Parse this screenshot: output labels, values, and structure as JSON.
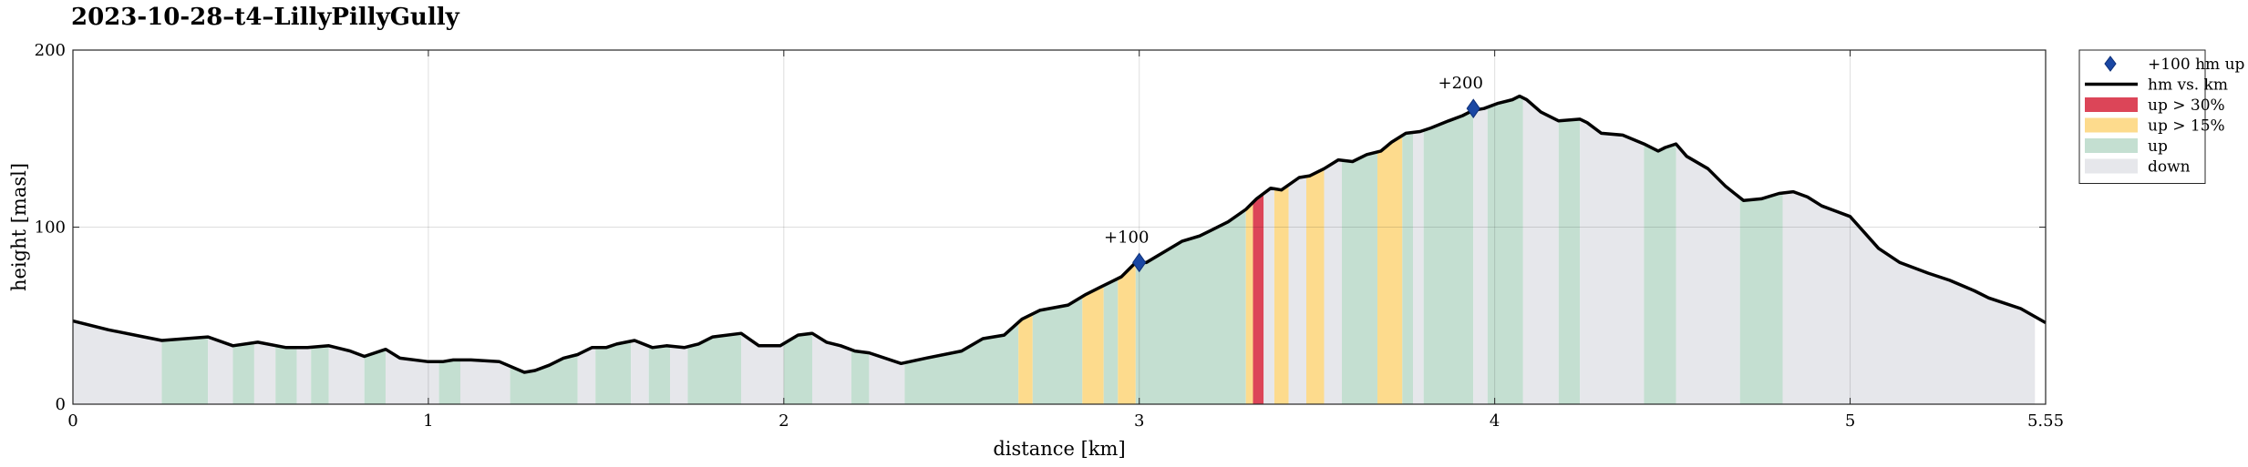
{
  "title": "2023-10-28–t4–LillyPillyGully",
  "chart_data": {
    "type": "area",
    "title": "2023-10-28–t4–LillyPillyGully",
    "xlabel": "distance [km]",
    "ylabel": "height [masl]",
    "xlim": [
      0,
      5.55
    ],
    "ylim": [
      0,
      200
    ],
    "xticks": [
      0,
      1,
      2,
      3,
      4,
      5,
      5.55
    ],
    "xtick_labels": [
      "0",
      "1",
      "2",
      "3",
      "4",
      "5",
      "5.55"
    ],
    "yticks": [
      0,
      100,
      200
    ],
    "ytick_labels": [
      "0",
      "100",
      "200"
    ],
    "grid": true,
    "legend_position": "outside-right",
    "legend": [
      {
        "key": "marker",
        "label": "+100 hm up",
        "color": "#1a47a3"
      },
      {
        "key": "line",
        "label": "hm vs. km",
        "color": "#000000"
      },
      {
        "key": "steep",
        "label": "up > 30%",
        "color": "#dc4558"
      },
      {
        "key": "mod",
        "label": "up > 15%",
        "color": "#fddb8d"
      },
      {
        "key": "up",
        "label": "up",
        "color": "#c4dfd1"
      },
      {
        "key": "down",
        "label": "down",
        "color": "#e6e7eb"
      }
    ],
    "profile": {
      "x": [
        0,
        0.1,
        0.2,
        0.25,
        0.38,
        0.45,
        0.52,
        0.6,
        0.66,
        0.72,
        0.78,
        0.82,
        0.88,
        0.92,
        1.0,
        1.04,
        1.07,
        1.12,
        1.2,
        1.27,
        1.3,
        1.34,
        1.38,
        1.42,
        1.46,
        1.5,
        1.53,
        1.58,
        1.63,
        1.67,
        1.72,
        1.76,
        1.8,
        1.88,
        1.93,
        1.99,
        2.04,
        2.08,
        2.12,
        2.16,
        2.2,
        2.24,
        2.33,
        2.4,
        2.5,
        2.56,
        2.62,
        2.67,
        2.72,
        2.8,
        2.85,
        2.89,
        2.92,
        2.95,
        2.99,
        3.02,
        3.07,
        3.12,
        3.17,
        3.2,
        3.25,
        3.3,
        3.33,
        3.37,
        3.4,
        3.45,
        3.48,
        3.52,
        3.56,
        3.6,
        3.64,
        3.68,
        3.71,
        3.75,
        3.79,
        3.82,
        3.87,
        3.91,
        3.94,
        3.97,
        4.01,
        4.05,
        4.07,
        4.09,
        4.13,
        4.18,
        4.24,
        4.26,
        4.3,
        4.36,
        4.42,
        4.46,
        4.48,
        4.51,
        4.54,
        4.6,
        4.65,
        4.7,
        4.75,
        4.8,
        4.84,
        4.88,
        4.92,
        4.96,
        5.0,
        5.04,
        5.08,
        5.14,
        5.22,
        5.28,
        5.35,
        5.39,
        5.42,
        5.48,
        5.55
      ],
      "y": [
        47,
        42,
        38,
        36,
        38,
        33,
        35,
        32,
        32,
        33,
        30,
        27,
        31,
        26,
        24,
        24,
        25,
        25,
        24,
        18,
        19,
        22,
        26,
        28,
        32,
        32,
        34,
        36,
        32,
        33,
        32,
        34,
        38,
        40,
        33,
        33,
        39,
        40,
        35,
        33,
        30,
        29,
        23,
        26,
        30,
        37,
        39,
        48,
        53,
        56,
        62,
        66,
        69,
        72,
        80,
        80,
        86,
        92,
        95,
        98,
        103,
        110,
        116,
        122,
        121,
        128,
        129,
        133,
        138,
        137,
        141,
        143,
        148,
        153,
        154,
        156,
        160,
        163,
        166,
        167,
        170,
        172,
        174,
        172,
        165,
        160,
        161,
        159,
        153,
        152,
        147,
        143,
        145,
        147,
        140,
        133,
        123,
        115,
        116,
        119,
        120,
        117,
        112,
        109,
        106,
        97,
        88,
        80,
        74,
        70,
        64,
        60,
        58,
        54,
        46
      ]
    },
    "bands": [
      {
        "type": "down",
        "from": 0.0,
        "to": 0.25
      },
      {
        "type": "up",
        "from": 0.25,
        "to": 0.38
      },
      {
        "type": "down",
        "from": 0.38,
        "to": 0.45
      },
      {
        "type": "up",
        "from": 0.45,
        "to": 0.51
      },
      {
        "type": "down",
        "from": 0.51,
        "to": 0.57
      },
      {
        "type": "up",
        "from": 0.57,
        "to": 0.63
      },
      {
        "type": "down",
        "from": 0.63,
        "to": 0.67
      },
      {
        "type": "up",
        "from": 0.67,
        "to": 0.72
      },
      {
        "type": "down",
        "from": 0.72,
        "to": 0.82
      },
      {
        "type": "up",
        "from": 0.82,
        "to": 0.88
      },
      {
        "type": "down",
        "from": 0.88,
        "to": 1.03
      },
      {
        "type": "up",
        "from": 1.03,
        "to": 1.09
      },
      {
        "type": "down",
        "from": 1.09,
        "to": 1.23
      },
      {
        "type": "up",
        "from": 1.23,
        "to": 1.42
      },
      {
        "type": "down",
        "from": 1.42,
        "to": 1.47
      },
      {
        "type": "up",
        "from": 1.47,
        "to": 1.57
      },
      {
        "type": "down",
        "from": 1.57,
        "to": 1.62
      },
      {
        "type": "up",
        "from": 1.62,
        "to": 1.68
      },
      {
        "type": "down",
        "from": 1.68,
        "to": 1.73
      },
      {
        "type": "up",
        "from": 1.73,
        "to": 1.88
      },
      {
        "type": "down",
        "from": 1.88,
        "to": 2.0
      },
      {
        "type": "up",
        "from": 2.0,
        "to": 2.08
      },
      {
        "type": "down",
        "from": 2.08,
        "to": 2.19
      },
      {
        "type": "up",
        "from": 2.19,
        "to": 2.24
      },
      {
        "type": "down",
        "from": 2.24,
        "to": 2.34
      },
      {
        "type": "up",
        "from": 2.34,
        "to": 2.66
      },
      {
        "type": "mod",
        "from": 2.66,
        "to": 2.7
      },
      {
        "type": "up",
        "from": 2.7,
        "to": 2.84
      },
      {
        "type": "mod",
        "from": 2.84,
        "to": 2.9
      },
      {
        "type": "up",
        "from": 2.9,
        "to": 2.94
      },
      {
        "type": "mod",
        "from": 2.94,
        "to": 2.99
      },
      {
        "type": "up",
        "from": 2.99,
        "to": 3.3
      },
      {
        "type": "mod",
        "from": 3.3,
        "to": 3.32
      },
      {
        "type": "steep",
        "from": 3.32,
        "to": 3.35
      },
      {
        "type": "down",
        "from": 3.35,
        "to": 3.38
      },
      {
        "type": "mod",
        "from": 3.38,
        "to": 3.42
      },
      {
        "type": "down",
        "from": 3.42,
        "to": 3.47
      },
      {
        "type": "mod",
        "from": 3.47,
        "to": 3.52
      },
      {
        "type": "down",
        "from": 3.52,
        "to": 3.57
      },
      {
        "type": "up",
        "from": 3.57,
        "to": 3.67
      },
      {
        "type": "mod",
        "from": 3.67,
        "to": 3.74
      },
      {
        "type": "up",
        "from": 3.74,
        "to": 3.77
      },
      {
        "type": "down",
        "from": 3.77,
        "to": 3.8
      },
      {
        "type": "up",
        "from": 3.8,
        "to": 3.94
      },
      {
        "type": "down",
        "from": 3.94,
        "to": 3.98
      },
      {
        "type": "up",
        "from": 3.98,
        "to": 4.08
      },
      {
        "type": "down",
        "from": 4.08,
        "to": 4.18
      },
      {
        "type": "up",
        "from": 4.18,
        "to": 4.24
      },
      {
        "type": "down",
        "from": 4.24,
        "to": 4.42
      },
      {
        "type": "up",
        "from": 4.42,
        "to": 4.51
      },
      {
        "type": "down",
        "from": 4.51,
        "to": 4.69
      },
      {
        "type": "up",
        "from": 4.69,
        "to": 4.81
      },
      {
        "type": "down",
        "from": 4.81,
        "to": 5.52
      }
    ],
    "markers": [
      {
        "x": 3.0,
        "y": 80,
        "label": "+100"
      },
      {
        "x": 3.94,
        "y": 167,
        "label": "+200"
      }
    ]
  }
}
